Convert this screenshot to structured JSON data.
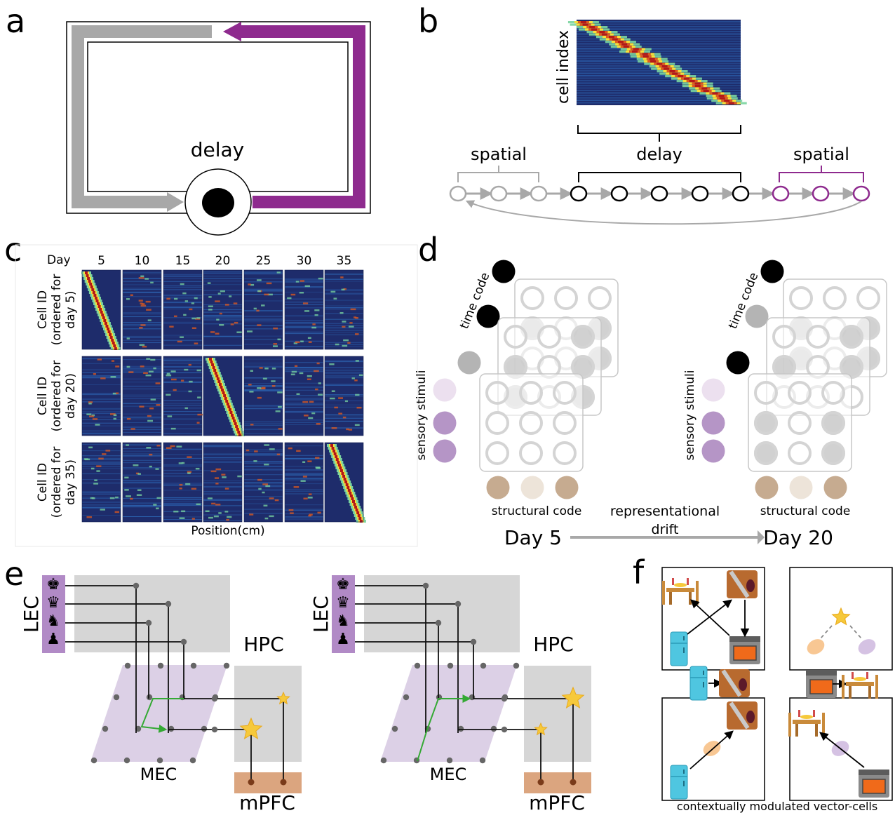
{
  "panel_letters": [
    "a",
    "b",
    "c",
    "d",
    "e",
    "f"
  ],
  "panel_a": {
    "delay_label": "delay"
  },
  "panel_b": {
    "y_label": "cell index",
    "delay_label": "delay",
    "spatial_left_label": "spatial",
    "spatial_right_label": "spatial",
    "colors": {
      "gray": "#a8a8a8",
      "purple": "#8e2a8e",
      "black": "#000000"
    }
  },
  "panel_c": {
    "day_header": "Day",
    "days": [
      "5",
      "10",
      "15",
      "20",
      "25",
      "30",
      "35"
    ],
    "row_labels": [
      [
        "Cell ID",
        "(ordered for",
        "day 5)"
      ],
      [
        "Cell ID",
        "(ordered for",
        "day 20)"
      ],
      [
        "Cell ID",
        "(ordered for",
        "day 35)"
      ]
    ],
    "ordered_column_index": [
      0,
      3,
      6
    ],
    "x_label": "Position(cm)",
    "colormap": [
      "#1e2c6b",
      "#2f6fc0",
      "#7ad4a0",
      "#f7e03a",
      "#e05a1e",
      "#b41818"
    ]
  },
  "panel_d": {
    "left": {
      "time_label": "time code",
      "sensory_label": "sensory stimuli",
      "structural_label": "structural code",
      "day_label": "Day 5"
    },
    "right": {
      "time_label": "time code",
      "sensory_label": "sensory stimuli",
      "structural_label": "structural code",
      "day_label": "Day 20"
    },
    "drift_line1": "representational",
    "drift_line2": "drift",
    "colors": {
      "sensory_light": "#ece0ef",
      "sensory": "#b595c6",
      "structural": "#c6ab90",
      "structural_light": "#ede4d9",
      "time_gray": "#b4b4b4"
    }
  },
  "panel_e": {
    "left": {
      "lec": "LEC",
      "hpc": "HPC",
      "mec": "MEC",
      "mpfc": "mPFC"
    },
    "right": {
      "lec": "LEC",
      "hpc": "HPC",
      "mec": "MEC",
      "mpfc": "mPFC"
    },
    "chess_icons": [
      "♚",
      "♛",
      "♞",
      "♟"
    ],
    "colors": {
      "lec": "#b18ac6",
      "mec": "#dcd0e6",
      "hpc": "#d6d6d6",
      "mpfc": "#dba57f",
      "arrow": "#34a934",
      "star": "#f6c93b"
    }
  },
  "panel_f": {
    "caption": "contextually modulated vector-cells",
    "icons": [
      "table-icon",
      "cutting-board-icon",
      "fridge-icon",
      "oven-icon",
      "star-icon"
    ]
  }
}
